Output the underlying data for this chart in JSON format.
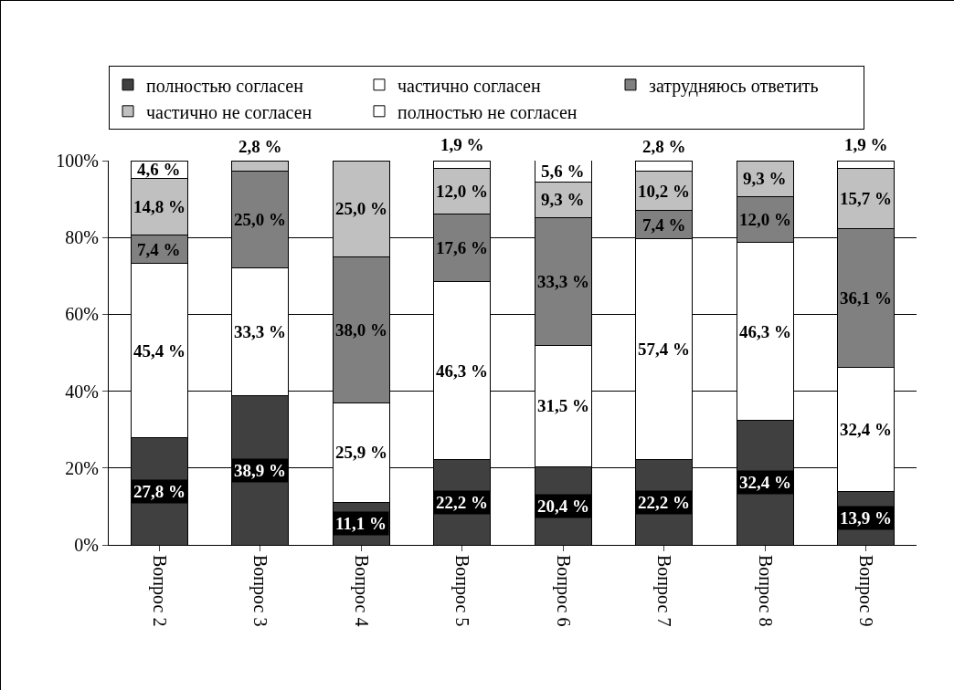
{
  "chart_data": {
    "type": "bar",
    "stacked": true,
    "categories": [
      "Вопрос 2",
      "Вопрос 3",
      "Вопрос 4",
      "Вопрос 5",
      "Вопрос 6",
      "Вопрос 7",
      "Вопрос 8",
      "Вопрос 9"
    ],
    "series": [
      {
        "name": "полностью согласен",
        "color": "#404040",
        "values": [
          27.8,
          38.9,
          11.1,
          22.2,
          20.4,
          22.2,
          32.4,
          13.9
        ],
        "value_labels": [
          "27,8 %",
          "38,9 %",
          "11,1 %",
          "22,2 %",
          "20,4 %",
          "22,2 %",
          "32,4 %",
          "13,9 %"
        ]
      },
      {
        "name": "частично согласен",
        "color": "#ffffff",
        "values": [
          45.4,
          33.3,
          25.9,
          46.3,
          31.5,
          57.4,
          46.3,
          32.4
        ],
        "value_labels": [
          "45,4 %",
          "33,3 %",
          "25,9 %",
          "46,3 %",
          "31,5 %",
          "57,4 %",
          "46,3 %",
          "32,4 %"
        ]
      },
      {
        "name": "затрудняюсь ответить",
        "color": "#808080",
        "values": [
          7.4,
          25.0,
          38.0,
          17.6,
          33.3,
          7.4,
          12.0,
          36.1
        ],
        "value_labels": [
          "7,4 %",
          "25,0 %",
          "38,0 %",
          "17,6 %",
          "33,3 %",
          "7,4 %",
          "12,0 %",
          "36,1 %"
        ]
      },
      {
        "name": "частично не согласен",
        "color": "#c0c0c0",
        "values": [
          14.8,
          2.8,
          25.0,
          12.0,
          9.3,
          10.2,
          9.3,
          15.7
        ],
        "value_labels": [
          "14,8 %",
          "2,8 %",
          "25,0 %",
          "12,0 %",
          "9,3 %",
          "10,2 %",
          "9,3 %",
          "15,7 %"
        ]
      },
      {
        "name": "полностью не согласен",
        "color": "#ffffff",
        "values": [
          4.6,
          null,
          null,
          1.9,
          5.6,
          2.8,
          null,
          1.9
        ],
        "value_labels": [
          "4,6 %",
          null,
          null,
          "1,9 %",
          "5,6 %",
          "2,8 %",
          null,
          "1,9 %"
        ]
      }
    ],
    "ylim": [
      0,
      100
    ],
    "yticks": [
      {
        "value": 0,
        "label": "0%"
      },
      {
        "value": 20,
        "label": "20%"
      },
      {
        "value": 40,
        "label": "40%"
      },
      {
        "value": 60,
        "label": "60%"
      },
      {
        "value": 80,
        "label": "80%"
      },
      {
        "value": 100,
        "label": "100%"
      }
    ],
    "grid": "y",
    "legend": "top"
  }
}
